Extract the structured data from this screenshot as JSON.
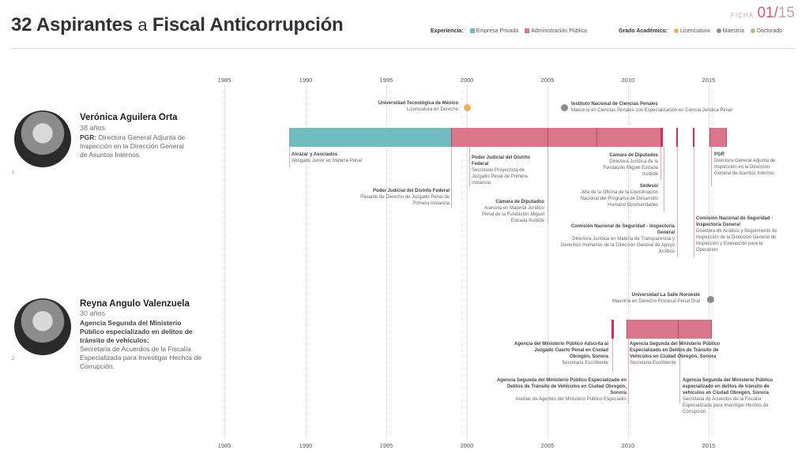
{
  "header": {
    "title_prefix": "32 Aspirantes",
    "title_small": "a",
    "title_suffix": "Fiscal Anticorrupción",
    "ficha_label": "FICHA",
    "ficha_num": "01",
    "ficha_sep": "/",
    "ficha_total": "15"
  },
  "legend": {
    "exp_label": "Experiencia:",
    "exp_items": [
      "Empresa Privada",
      "Administración Pública"
    ],
    "grado_label": "Grado Académico:",
    "grado_items": [
      "Licenciatura",
      "Maestría",
      "Doctorado"
    ]
  },
  "colors": {
    "private": "#6fbcc0",
    "public": "#d9768a",
    "licenciatura": "#f0b15a",
    "maestria": "#8c8c8c",
    "doctorado": "#9dc77b"
  },
  "axis": {
    "years": [
      "1985",
      "1990",
      "1995",
      "2000",
      "2005",
      "2010",
      "2015"
    ]
  },
  "persons": [
    {
      "index": "1",
      "name": "Verónica Aguilera Orta",
      "age": "38 años",
      "role_org": "PGR:",
      "role": "Directora General Adjunta de Inspección en la Dirección General de Asuntos Internos.",
      "annotations": [
        {
          "title": "Universidad Tecnológica de México",
          "text": "Licenciatura en Derecho"
        },
        {
          "title": "Instituto Nacional de Ciencias Penales",
          "text": "Maestría en Ciencias Penales con Especialización en Ciencia Jurídica Penal"
        },
        {
          "title": "Alcázar y Asociados",
          "text": "Abogado Junior en Materia Penal"
        },
        {
          "title": "Poder Judicial del Distrito Federal",
          "text": "Secretario Proyectista de Juzgado Penal de Primera Instancia"
        },
        {
          "title": "Poder Judicial del Distrito Federal",
          "text": "Pasante de Derecho de Juzgado Penal de Primera Instancia"
        },
        {
          "title": "Cámara de Diputados",
          "text": "Asesora en Material Jurídico Penal de la Fundación Miguel Estrada Iturbide"
        },
        {
          "title": "Cámara de Diputados",
          "text": "Directora Jurídica de la Fundación Miguel Estrada Iturbide"
        },
        {
          "title": "Sedesol",
          "text": "Jefa de la Oficina de la Coordinación Nacional del Programa de Desarrollo Humano Oportunidades"
        },
        {
          "title": "Comisión Nacional de Seguridad - Inspectoría General",
          "text": "Directora Jurídica en Materia de Transparencia y Derechos Humanos de la Dirección General de Apoyo Jurídico"
        },
        {
          "title": "PGR",
          "text": "Directora General Adjunta de Inspección en la Dirección General de Asuntos Internos"
        },
        {
          "title": "Comisión Nacional de Seguridad - Inspectoría General",
          "text": "Directora de Análisis y Seguimiento de Inspección de la Dirección General de Inspección y Evaluación para la Operación"
        }
      ]
    },
    {
      "index": "2",
      "name": "Reyna Angulo Valenzuela",
      "age": "30 años",
      "role_org": "Agencia Segunda del Ministerio Público especializado en delitos de tránsito de vehículos:",
      "role": "Secretaria de Acuerdos de la Fiscalía Especializada para Investigar Hechos de Corrupción.",
      "annotations": [
        {
          "title": "Universidad La Salle Noroeste",
          "text": "Maestría en Derecho Procesal Penal Oral"
        },
        {
          "title": "Agencia del Ministerio Público Adscrita al Juzgado Cuarto Penal en Ciudad Obregón, Sonora",
          "text": "Secretaria Escribiente"
        },
        {
          "title": "Agencia Segunda del Ministerio Público Especializado en Delitos de Tránsito de Vehículos en Ciudad Obregón, Sonora",
          "text": "Secretaria Escribiente"
        },
        {
          "title": "Agencia Segunda del Ministerio Público Especializado en Delitos de Tránsito de Vehículos en Ciudad Obregón, Sonora",
          "text": "Auxiliar de Agentes del Ministerio Público Especiales"
        },
        {
          "title": "Agencia Segunda del Ministerio Público especializado en delitos de tránsito de vehículos en Ciudad Obregón, Sonora",
          "text": "Secretaria de Acuerdos de la Fiscalía Especializada para Investigar Hechos de Corrupción"
        }
      ]
    }
  ]
}
